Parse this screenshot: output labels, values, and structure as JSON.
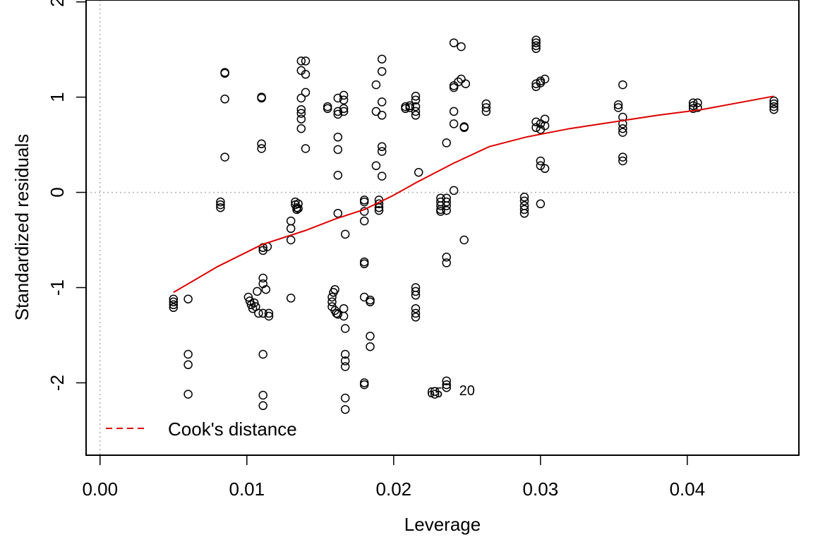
{
  "chart_data": {
    "type": "scatter",
    "title": "",
    "xlabel": "Leverage",
    "ylabel": "Standardized residuals",
    "xlim": [
      -0.00095,
      0.0476
    ],
    "ylim": [
      -2.76,
      2.02
    ],
    "x_ticks": [
      0.0,
      0.01,
      0.02,
      0.03,
      0.04
    ],
    "x_tick_labels": [
      "0.00",
      "0.01",
      "0.02",
      "0.03",
      "0.04"
    ],
    "y_ticks": [
      -2,
      -1,
      0,
      1,
      2
    ],
    "y_tick_labels": [
      "-2",
      "-1",
      "0",
      "1",
      "2"
    ],
    "reference_lines": {
      "x": 0,
      "y": 0
    },
    "colors": {
      "points": "#000000",
      "smoother": "#dd0000",
      "reference": "#b0b0b0"
    },
    "legend": {
      "position": "bottom-left",
      "entries": [
        {
          "label": "Cook's distance",
          "color": "#dd0000",
          "style": "dashed"
        }
      ]
    },
    "series": [
      {
        "type": "scatter",
        "points": [
          [
            0.005,
            -1.12
          ],
          [
            0.005,
            -1.15
          ],
          [
            0.005,
            -1.18
          ],
          [
            0.005,
            -1.21
          ],
          [
            0.006,
            -1.12
          ],
          [
            0.006,
            -1.7
          ],
          [
            0.006,
            -1.81
          ],
          [
            0.006,
            -2.12
          ],
          [
            0.0082,
            -0.1
          ],
          [
            0.0082,
            -0.13
          ],
          [
            0.0082,
            -0.16
          ],
          [
            0.0085,
            1.25
          ],
          [
            0.0085,
            1.26
          ],
          [
            0.0085,
            0.98
          ],
          [
            0.0085,
            0.37
          ],
          [
            0.011,
            1.0
          ],
          [
            0.011,
            0.99
          ],
          [
            0.011,
            0.51
          ],
          [
            0.011,
            0.46
          ],
          [
            0.0111,
            -0.58
          ],
          [
            0.0111,
            -0.61
          ],
          [
            0.0114,
            -0.57
          ],
          [
            0.0101,
            -1.1
          ],
          [
            0.0102,
            -1.14
          ],
          [
            0.0103,
            -1.18
          ],
          [
            0.0104,
            -1.22
          ],
          [
            0.0105,
            -1.16
          ],
          [
            0.0106,
            -1.2
          ],
          [
            0.0107,
            -1.04
          ],
          [
            0.0108,
            -1.27
          ],
          [
            0.0111,
            -0.9
          ],
          [
            0.0111,
            -0.96
          ],
          [
            0.0113,
            -1.02
          ],
          [
            0.0111,
            -1.27
          ],
          [
            0.0115,
            -1.3
          ],
          [
            0.0115,
            -1.27
          ],
          [
            0.0111,
            -1.7
          ],
          [
            0.0111,
            -2.13
          ],
          [
            0.0111,
            -2.24
          ],
          [
            0.013,
            -0.3
          ],
          [
            0.013,
            -0.38
          ],
          [
            0.013,
            -0.5
          ],
          [
            0.013,
            -1.11
          ],
          [
            0.0133,
            -0.1
          ],
          [
            0.0133,
            -0.13
          ],
          [
            0.0134,
            -0.16
          ],
          [
            0.0134,
            -0.18
          ],
          [
            0.0135,
            -0.12
          ],
          [
            0.0135,
            -0.17
          ],
          [
            0.0137,
            1.38
          ],
          [
            0.0137,
            1.28
          ],
          [
            0.0137,
            0.99
          ],
          [
            0.0137,
            0.87
          ],
          [
            0.0137,
            0.83
          ],
          [
            0.0137,
            0.77
          ],
          [
            0.0137,
            0.67
          ],
          [
            0.014,
            1.38
          ],
          [
            0.014,
            1.24
          ],
          [
            0.014,
            1.05
          ],
          [
            0.014,
            0.46
          ],
          [
            0.0155,
            0.9
          ],
          [
            0.0155,
            0.88
          ],
          [
            0.0158,
            -1.1
          ],
          [
            0.0158,
            -1.15
          ],
          [
            0.0158,
            -1.2
          ],
          [
            0.0159,
            -1.05
          ],
          [
            0.016,
            -1.02
          ],
          [
            0.016,
            -1.24
          ],
          [
            0.0161,
            -1.27
          ],
          [
            0.0162,
            -1.28
          ],
          [
            0.0162,
            0.99
          ],
          [
            0.0162,
            0.85
          ],
          [
            0.0162,
            0.82
          ],
          [
            0.0162,
            0.58
          ],
          [
            0.0162,
            0.45
          ],
          [
            0.0162,
            0.18
          ],
          [
            0.0162,
            -0.22
          ],
          [
            0.0166,
            1.02
          ],
          [
            0.0166,
            0.97
          ],
          [
            0.0166,
            0.88
          ],
          [
            0.0166,
            0.85
          ],
          [
            0.0166,
            -1.22
          ],
          [
            0.0166,
            -1.3
          ],
          [
            0.0167,
            -0.44
          ],
          [
            0.0167,
            -1.43
          ],
          [
            0.0167,
            -1.7
          ],
          [
            0.0167,
            -1.77
          ],
          [
            0.0167,
            -1.83
          ],
          [
            0.0167,
            -2.16
          ],
          [
            0.0167,
            -2.28
          ],
          [
            0.018,
            -0.08
          ],
          [
            0.018,
            -0.1
          ],
          [
            0.018,
            -0.2
          ],
          [
            0.018,
            -0.3
          ],
          [
            0.018,
            -0.73
          ],
          [
            0.018,
            -0.75
          ],
          [
            0.018,
            -1.1
          ],
          [
            0.018,
            -2.0
          ],
          [
            0.018,
            -2.02
          ],
          [
            0.0184,
            -1.13
          ],
          [
            0.0184,
            -1.15
          ],
          [
            0.0184,
            -1.51
          ],
          [
            0.0184,
            -1.62
          ],
          [
            0.0188,
            1.13
          ],
          [
            0.0188,
            0.85
          ],
          [
            0.0188,
            0.28
          ],
          [
            0.019,
            -0.08
          ],
          [
            0.019,
            -0.12
          ],
          [
            0.019,
            -0.16
          ],
          [
            0.019,
            -0.19
          ],
          [
            0.0192,
            1.4
          ],
          [
            0.0192,
            1.27
          ],
          [
            0.0192,
            0.95
          ],
          [
            0.0192,
            0.81
          ],
          [
            0.0192,
            0.48
          ],
          [
            0.0192,
            0.43
          ],
          [
            0.0192,
            0.17
          ],
          [
            0.0208,
            0.9
          ],
          [
            0.0208,
            0.88
          ],
          [
            0.0211,
            0.91
          ],
          [
            0.0211,
            0.89
          ],
          [
            0.0215,
            1.01
          ],
          [
            0.0215,
            0.97
          ],
          [
            0.0215,
            0.9
          ],
          [
            0.0215,
            0.85
          ],
          [
            0.0215,
            0.81
          ],
          [
            0.0215,
            -1.0
          ],
          [
            0.0215,
            -1.04
          ],
          [
            0.0215,
            -1.08
          ],
          [
            0.0215,
            -1.22
          ],
          [
            0.0215,
            -1.27
          ],
          [
            0.0215,
            -1.31
          ],
          [
            0.0217,
            0.21
          ],
          [
            0.0228,
            -2.12
          ],
          [
            0.0228,
            -2.09
          ],
          [
            0.0232,
            -0.06
          ],
          [
            0.0232,
            -0.1
          ],
          [
            0.0232,
            -0.14
          ],
          [
            0.0232,
            -0.18
          ],
          [
            0.0232,
            -0.2
          ],
          [
            0.0236,
            -0.06
          ],
          [
            0.0236,
            -0.1
          ],
          [
            0.0236,
            -0.14
          ],
          [
            0.0236,
            -0.19
          ],
          [
            0.0236,
            0.52
          ],
          [
            0.0236,
            -0.68
          ],
          [
            0.0236,
            -0.74
          ],
          [
            0.0236,
            -1.98
          ],
          [
            0.0236,
            -2.02
          ],
          [
            0.0236,
            -2.05
          ],
          [
            0.0241,
            1.57
          ],
          [
            0.0241,
            1.12
          ],
          [
            0.0241,
            1.1
          ],
          [
            0.0241,
            0.85
          ],
          [
            0.0241,
            0.72
          ],
          [
            0.0241,
            0.02
          ],
          [
            0.0244,
            1.16
          ],
          [
            0.0246,
            1.53
          ],
          [
            0.0246,
            1.19
          ],
          [
            0.0248,
            0.69
          ],
          [
            0.0248,
            0.68
          ],
          [
            0.0249,
            1.14
          ],
          [
            0.0248,
            -0.5
          ],
          [
            0.0263,
            0.93
          ],
          [
            0.0263,
            0.89
          ],
          [
            0.0263,
            0.85
          ],
          [
            0.0289,
            -0.05
          ],
          [
            0.0289,
            -0.09
          ],
          [
            0.0289,
            -0.14
          ],
          [
            0.0289,
            -0.18
          ],
          [
            0.0289,
            -0.22
          ],
          [
            0.0297,
            1.6
          ],
          [
            0.0297,
            1.57
          ],
          [
            0.0297,
            1.54
          ],
          [
            0.0297,
            1.51
          ],
          [
            0.0297,
            1.14
          ],
          [
            0.0297,
            1.11
          ],
          [
            0.0297,
            0.74
          ],
          [
            0.0297,
            0.68
          ],
          [
            0.03,
            1.17
          ],
          [
            0.03,
            1.15
          ],
          [
            0.03,
            0.72
          ],
          [
            0.03,
            0.66
          ],
          [
            0.03,
            0.33
          ],
          [
            0.03,
            0.28
          ],
          [
            0.03,
            -0.12
          ],
          [
            0.0303,
            1.19
          ],
          [
            0.0303,
            0.77
          ],
          [
            0.0303,
            0.7
          ],
          [
            0.0303,
            0.25
          ],
          [
            0.0353,
            0.92
          ],
          [
            0.0353,
            0.89
          ],
          [
            0.0356,
            1.13
          ],
          [
            0.0356,
            0.79
          ],
          [
            0.0356,
            0.72
          ],
          [
            0.0356,
            0.67
          ],
          [
            0.0356,
            0.63
          ],
          [
            0.0356,
            0.37
          ],
          [
            0.0356,
            0.33
          ],
          [
            0.0404,
            0.94
          ],
          [
            0.0404,
            0.91
          ],
          [
            0.0404,
            0.88
          ],
          [
            0.0407,
            0.94
          ],
          [
            0.0407,
            0.89
          ],
          [
            0.0459,
            0.96
          ],
          [
            0.0459,
            0.93
          ],
          [
            0.0459,
            0.9
          ],
          [
            0.0459,
            0.87
          ]
        ]
      },
      {
        "name": "Cook's distance",
        "type": "line",
        "points": [
          [
            0.005,
            -1.05
          ],
          [
            0.008,
            -0.78
          ],
          [
            0.011,
            -0.55
          ],
          [
            0.014,
            -0.4
          ],
          [
            0.016,
            -0.28
          ],
          [
            0.018,
            -0.18
          ],
          [
            0.02,
            -0.03
          ],
          [
            0.0215,
            0.1
          ],
          [
            0.024,
            0.3
          ],
          [
            0.0265,
            0.48
          ],
          [
            0.029,
            0.58
          ],
          [
            0.032,
            0.67
          ],
          [
            0.035,
            0.74
          ],
          [
            0.038,
            0.81
          ],
          [
            0.041,
            0.87
          ],
          [
            0.0459,
            1.01
          ]
        ]
      }
    ],
    "point_labels": [
      {
        "text": "65",
        "x": 0.0228,
        "y": -2.1
      },
      {
        "text": "20",
        "x": 0.025,
        "y": -2.08
      }
    ]
  }
}
